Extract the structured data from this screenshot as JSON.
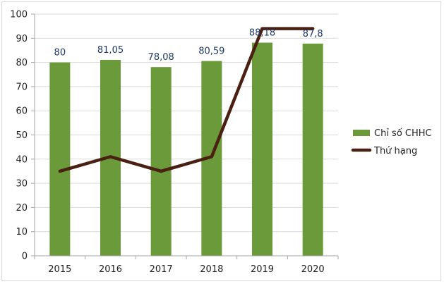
{
  "chart_data": {
    "type": "bar",
    "categories": [
      "2015",
      "2016",
      "2017",
      "2018",
      "2019",
      "2020"
    ],
    "series": [
      {
        "name": "Chỉ số CHHC",
        "kind": "bar",
        "values": [
          80,
          81.05,
          78.08,
          80.59,
          88.18,
          87.8
        ],
        "labels": [
          "80",
          "81,05",
          "78,08",
          "80,59",
          "88,18",
          "87,8"
        ],
        "color": "#6a9a3a"
      },
      {
        "name": "Thứ hạng",
        "kind": "line",
        "values": [
          35,
          41,
          35,
          41,
          94,
          94
        ],
        "color": "#4a2012"
      }
    ],
    "ylim": [
      0,
      100
    ],
    "yticks": [
      0,
      10,
      20,
      30,
      40,
      50,
      60,
      70,
      80,
      90,
      100
    ],
    "grid": true,
    "legend": "right",
    "title": "",
    "xlabel": "",
    "ylabel": ""
  }
}
